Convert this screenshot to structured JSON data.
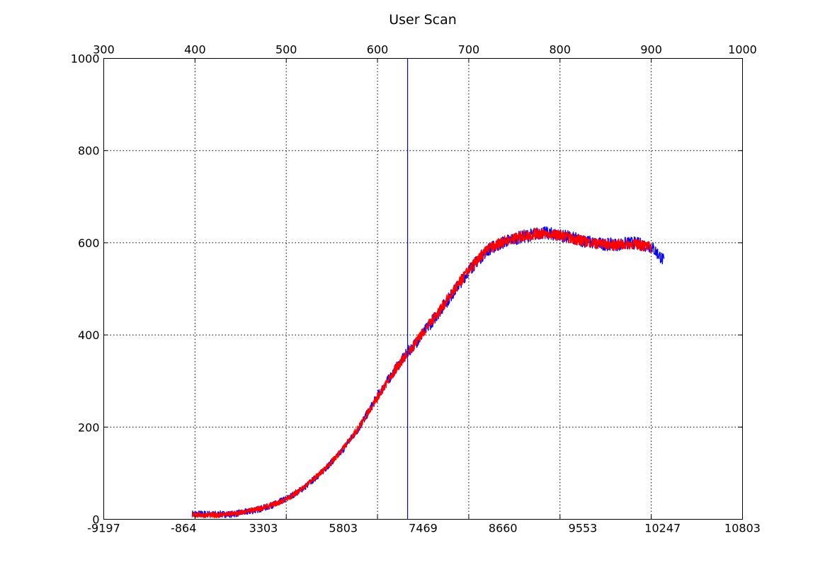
{
  "chart_data": {
    "type": "line",
    "title": "User Scan",
    "xlabel": "",
    "ylabel": "",
    "top_axis": {
      "label": "",
      "range": [
        300,
        1000
      ],
      "ticks": [
        "300",
        "400",
        "500",
        "600",
        "700",
        "800",
        "900",
        "1000"
      ]
    },
    "bottom_axis": {
      "label": "",
      "ticks": [
        "-9197",
        "-864",
        "3303",
        "5803",
        "7469",
        "8660",
        "9553",
        "10247",
        "10803"
      ]
    },
    "y_axis": {
      "range": [
        0,
        1000
      ],
      "ticks": [
        "0",
        "200",
        "400",
        "600",
        "800",
        "1000"
      ]
    },
    "grid": true,
    "marker_line": {
      "x": 633,
      "color": "#0000ff"
    },
    "series": [
      {
        "color": "#0000ff",
        "noise": 14,
        "data": [
          [
            397,
            12
          ],
          [
            420,
            11
          ],
          [
            440,
            11
          ],
          [
            460,
            17
          ],
          [
            480,
            27
          ],
          [
            500,
            44
          ],
          [
            520,
            69
          ],
          [
            540,
            104
          ],
          [
            560,
            146
          ],
          [
            580,
            199
          ],
          [
            600,
            267
          ],
          [
            620,
            327
          ],
          [
            633,
            362
          ],
          [
            645,
            390
          ],
          [
            660,
            430
          ],
          [
            680,
            484
          ],
          [
            700,
            540
          ],
          [
            720,
            584
          ],
          [
            740,
            603
          ],
          [
            760,
            614
          ],
          [
            780,
            622
          ],
          [
            800,
            617
          ],
          [
            820,
            607
          ],
          [
            840,
            598
          ],
          [
            860,
            596
          ],
          [
            880,
            600
          ],
          [
            900,
            592
          ],
          [
            910,
            570
          ],
          [
            914,
            560
          ]
        ]
      },
      {
        "color": "#ff0000",
        "noise": 12,
        "data": [
          [
            397,
            10
          ],
          [
            420,
            9
          ],
          [
            440,
            11
          ],
          [
            460,
            18
          ],
          [
            480,
            28
          ],
          [
            500,
            43
          ],
          [
            520,
            70
          ],
          [
            540,
            105
          ],
          [
            560,
            147
          ],
          [
            580,
            201
          ],
          [
            600,
            265
          ],
          [
            620,
            326
          ],
          [
            633,
            360
          ],
          [
            645,
            392
          ],
          [
            660,
            432
          ],
          [
            680,
            486
          ],
          [
            700,
            541
          ],
          [
            720,
            585
          ],
          [
            740,
            604
          ],
          [
            760,
            615
          ],
          [
            780,
            620
          ],
          [
            800,
            616
          ],
          [
            820,
            606
          ],
          [
            840,
            598
          ],
          [
            860,
            595
          ],
          [
            880,
            598
          ],
          [
            900,
            590
          ]
        ]
      }
    ],
    "segment_colors": [
      "#0000ff",
      "#ff0000"
    ]
  }
}
